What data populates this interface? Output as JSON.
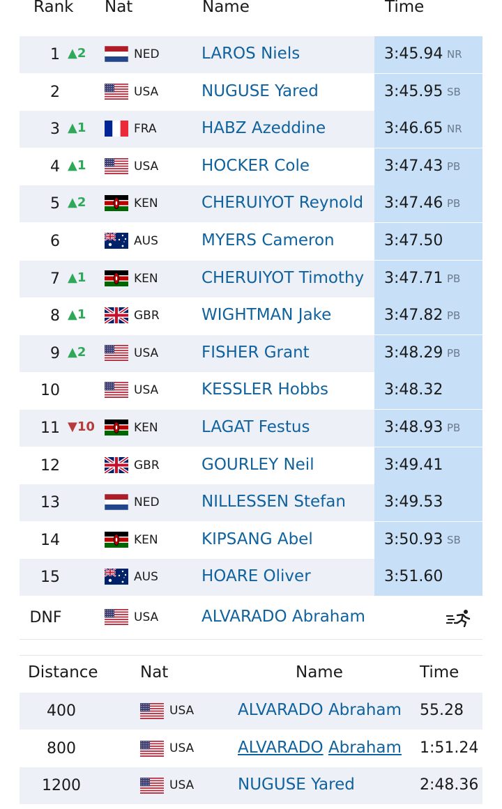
{
  "results_table": {
    "headers": {
      "rank": "Rank",
      "nat": "Nat",
      "name": "Name",
      "time": "Time"
    },
    "rows": [
      {
        "rank": "1",
        "move": "▲2",
        "move_dir": "up",
        "flag": "NED",
        "nat": "NED",
        "name": "LAROS Niels",
        "time": "3:45.94",
        "note": "NR"
      },
      {
        "rank": "2",
        "move": "",
        "move_dir": "",
        "flag": "USA",
        "nat": "USA",
        "name": "NUGUSE Yared",
        "time": "3:45.95",
        "note": "SB"
      },
      {
        "rank": "3",
        "move": "▲1",
        "move_dir": "up",
        "flag": "FRA",
        "nat": "FRA",
        "name": "HABZ Azeddine",
        "time": "3:46.65",
        "note": "NR"
      },
      {
        "rank": "4",
        "move": "▲1",
        "move_dir": "up",
        "flag": "USA",
        "nat": "USA",
        "name": "HOCKER Cole",
        "time": "3:47.43",
        "note": "PB"
      },
      {
        "rank": "5",
        "move": "▲2",
        "move_dir": "up",
        "flag": "KEN",
        "nat": "KEN",
        "name": "CHERUIYOT Reynold",
        "time": "3:47.46",
        "note": "PB"
      },
      {
        "rank": "6",
        "move": "",
        "move_dir": "",
        "flag": "AUS",
        "nat": "AUS",
        "name": "MYERS Cameron",
        "time": "3:47.50",
        "note": ""
      },
      {
        "rank": "7",
        "move": "▲1",
        "move_dir": "up",
        "flag": "KEN",
        "nat": "KEN",
        "name": "CHERUIYOT Timothy",
        "time": "3:47.71",
        "note": "PB"
      },
      {
        "rank": "8",
        "move": "▲1",
        "move_dir": "up",
        "flag": "GBR",
        "nat": "GBR",
        "name": "WIGHTMAN Jake",
        "time": "3:47.82",
        "note": "PB"
      },
      {
        "rank": "9",
        "move": "▲2",
        "move_dir": "up",
        "flag": "USA",
        "nat": "USA",
        "name": "FISHER Grant",
        "time": "3:48.29",
        "note": "PB"
      },
      {
        "rank": "10",
        "move": "",
        "move_dir": "",
        "flag": "USA",
        "nat": "USA",
        "name": "KESSLER Hobbs",
        "time": "3:48.32",
        "note": ""
      },
      {
        "rank": "11",
        "move": "▼10",
        "move_dir": "down",
        "flag": "KEN",
        "nat": "KEN",
        "name": "LAGAT Festus",
        "time": "3:48.93",
        "note": "PB"
      },
      {
        "rank": "12",
        "move": "",
        "move_dir": "",
        "flag": "GBR",
        "nat": "GBR",
        "name": "GOURLEY Neil",
        "time": "3:49.41",
        "note": ""
      },
      {
        "rank": "13",
        "move": "",
        "move_dir": "",
        "flag": "NED",
        "nat": "NED",
        "name": "NILLESSEN Stefan",
        "time": "3:49.53",
        "note": ""
      },
      {
        "rank": "14",
        "move": "",
        "move_dir": "",
        "flag": "KEN",
        "nat": "KEN",
        "name": "KIPSANG Abel",
        "time": "3:50.93",
        "note": "SB"
      },
      {
        "rank": "15",
        "move": "",
        "move_dir": "",
        "flag": "AUS",
        "nat": "AUS",
        "name": "HOARE Oliver",
        "time": "3:51.60",
        "note": ""
      }
    ],
    "dnf_row": {
      "rank": "DNF",
      "flag": "USA",
      "nat": "USA",
      "name": "ALVARADO Abraham",
      "icon": "runner-icon"
    }
  },
  "splits_table": {
    "headers": {
      "distance": "Distance",
      "nat": "Nat",
      "name": "Name",
      "time": "Time"
    },
    "rows": [
      {
        "distance": "400",
        "flag": "USA",
        "nat": "USA",
        "name_first": "ALVARADO",
        "name_last": "Abraham",
        "time": "55.28"
      },
      {
        "distance": "800",
        "flag": "USA",
        "nat": "USA",
        "name_first": "ALVARADO",
        "name_last": "Abraham",
        "time": "1:51.24"
      },
      {
        "distance": "1200",
        "flag": "USA",
        "nat": "USA",
        "name_first": "NUGUSE",
        "name_last": "Yared",
        "time": "2:48.36"
      }
    ]
  },
  "colors": {
    "link": "#10629e",
    "row_shade": "#edf1f7",
    "time_highlight": "#c7e0f7",
    "move_up": "#2fa85a",
    "move_down": "#b63b3b"
  }
}
